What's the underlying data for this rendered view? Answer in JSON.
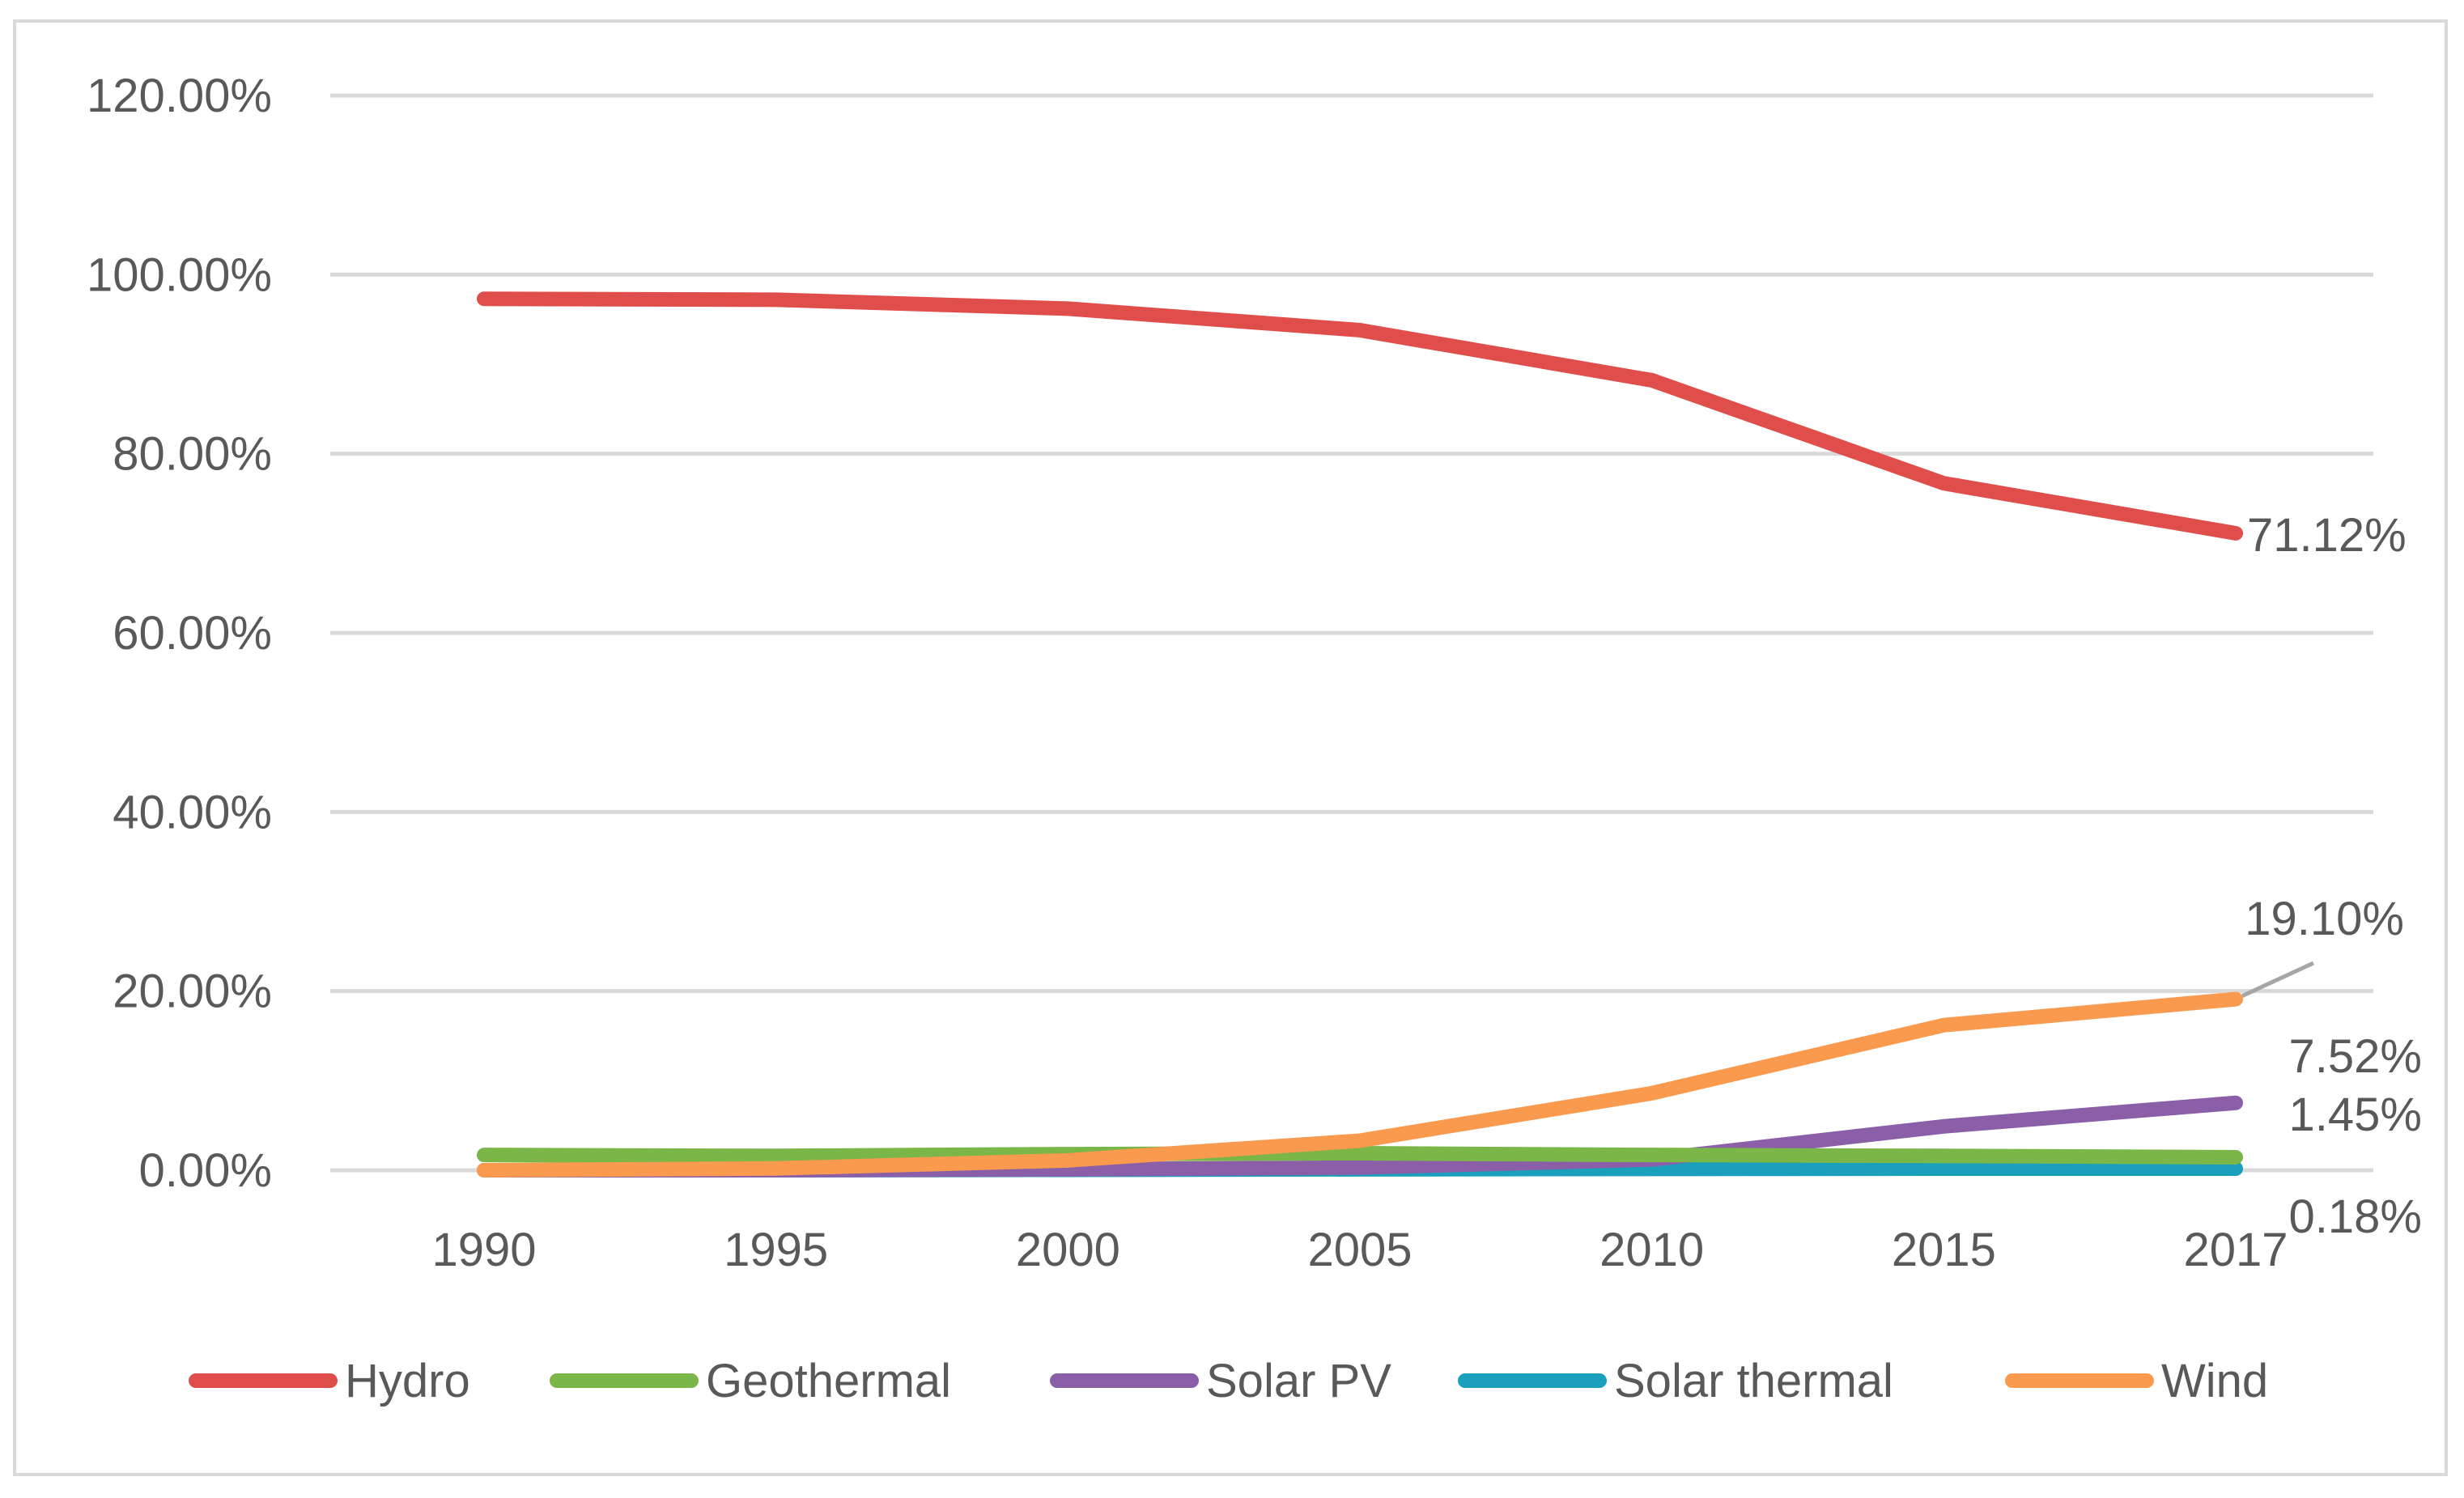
{
  "chart_data": {
    "type": "line",
    "title": "",
    "xlabel": "",
    "ylabel": "",
    "categories": [
      "1990",
      "1995",
      "2000",
      "2005",
      "2010",
      "2015",
      "2017"
    ],
    "ylim": [
      0,
      120
    ],
    "yticks": [
      "0.00%",
      "20.00%",
      "40.00%",
      "60.00%",
      "80.00%",
      "100.00%",
      "120.00%"
    ],
    "grid": true,
    "legend_position": "bottom",
    "series": [
      {
        "name": "Hydro",
        "color": "#e04e4b",
        "values": [
          97.3,
          97.2,
          96.2,
          93.8,
          88.2,
          76.7,
          71.12
        ],
        "end_label": "71.12%"
      },
      {
        "name": "Geothermal",
        "color": "#7ab648",
        "values": [
          1.7,
          1.6,
          1.8,
          1.9,
          1.7,
          1.6,
          1.45
        ],
        "end_label": "1.45%"
      },
      {
        "name": "Solar PV",
        "color": "#8a5fa8",
        "values": [
          0.0,
          0.0,
          0.1,
          0.3,
          1.2,
          4.9,
          7.52
        ],
        "end_label": "7.52%"
      },
      {
        "name": "Solar thermal",
        "color": "#1aa0bd",
        "values": [
          0.0,
          0.0,
          0.05,
          0.1,
          0.15,
          0.18,
          0.18
        ],
        "end_label": "0.18%"
      },
      {
        "name": "Wind",
        "color": "#f99a4f",
        "values": [
          0.0,
          0.2,
          1.1,
          3.3,
          8.6,
          16.2,
          19.1
        ],
        "end_label": "19.10%"
      }
    ]
  }
}
